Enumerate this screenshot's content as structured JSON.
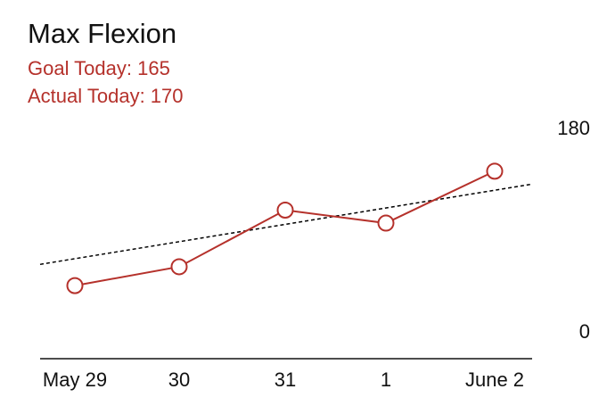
{
  "header": {
    "title": "Max Flexion",
    "goal_text": "Goal Today: 165",
    "actual_text": "Actual Today: 170"
  },
  "colors": {
    "accent": "#b5312b",
    "text": "#111111",
    "trend": "#000000"
  },
  "chart_data": {
    "type": "line",
    "title": "Max Flexion",
    "categories": [
      "May 29",
      "30",
      "31",
      "1",
      "June 2"
    ],
    "series": [
      {
        "values": [
          40,
          56,
          104,
          93,
          137
        ]
      }
    ],
    "trendline": {
      "start": 58,
      "end": 126,
      "style": "dashed"
    },
    "ylim": [
      0,
      180
    ],
    "y_ticks": [
      "0",
      "180"
    ],
    "y_axis_side": "right",
    "grid": false,
    "goal": 165,
    "actual": 170
  }
}
